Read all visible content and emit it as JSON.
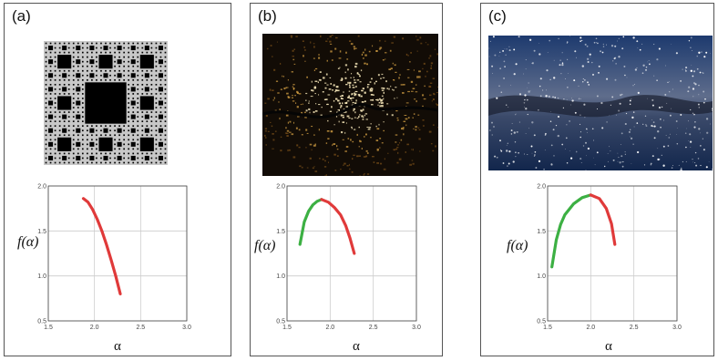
{
  "panels": [
    {
      "label": "(a)",
      "image": "sierpinski-carpet-fractal"
    },
    {
      "label": "(b)",
      "image": "city-lights-night-satellite-photo"
    },
    {
      "label": "(c)",
      "image": "milky-way-starfield-photo"
    }
  ],
  "axis_labels": {
    "x": "α",
    "y": "f(α)"
  },
  "colors": {
    "rising": "#3cb043",
    "falling": "#e03a3a",
    "grid": "#cccccc",
    "axis": "#444444"
  },
  "chart_data": [
    {
      "type": "line",
      "panel": "(a)",
      "xlabel": "α",
      "ylabel": "f(α)",
      "xlim": [
        1.5,
        3.0
      ],
      "ylim": [
        0.5,
        2.0
      ],
      "xticks": [
        "1.5",
        "2.0",
        "2.5",
        "3.0"
      ],
      "yticks": [
        "0.5",
        "1.0",
        "1.5",
        "2.0"
      ],
      "grid": true,
      "series": [
        {
          "color": "#e03a3a",
          "x": [
            1.88,
            1.93,
            1.98,
            2.03,
            2.08,
            2.13,
            2.18,
            2.23,
            2.28
          ],
          "y": [
            1.86,
            1.82,
            1.74,
            1.63,
            1.5,
            1.35,
            1.18,
            1.0,
            0.8
          ]
        }
      ]
    },
    {
      "type": "line",
      "panel": "(b)",
      "xlabel": "α",
      "ylabel": "f(α)",
      "xlim": [
        1.5,
        3.0
      ],
      "ylim": [
        0.5,
        2.0
      ],
      "xticks": [
        "1.5",
        "2.0",
        "2.5",
        "3.0"
      ],
      "yticks": [
        "0.5",
        "1.0",
        "1.5",
        "2.0"
      ],
      "grid": true,
      "series": [
        {
          "color": "#3cb043",
          "x": [
            1.65,
            1.7,
            1.75,
            1.8,
            1.85,
            1.9
          ],
          "y": [
            1.35,
            1.6,
            1.72,
            1.79,
            1.83,
            1.85
          ]
        },
        {
          "color": "#e03a3a",
          "x": [
            1.9,
            1.98,
            2.05,
            2.12,
            2.18,
            2.23,
            2.28
          ],
          "y": [
            1.85,
            1.82,
            1.76,
            1.68,
            1.56,
            1.42,
            1.25
          ]
        }
      ]
    },
    {
      "type": "line",
      "panel": "(c)",
      "xlabel": "α",
      "ylabel": "f(α)",
      "xlim": [
        1.5,
        3.0
      ],
      "ylim": [
        0.5,
        2.0
      ],
      "xticks": [
        "1.5",
        "2.0",
        "2.5",
        "3.0"
      ],
      "yticks": [
        "0.5",
        "1.0",
        "1.5",
        "2.0"
      ],
      "grid": true,
      "series": [
        {
          "color": "#3cb043",
          "x": [
            1.55,
            1.6,
            1.65,
            1.7,
            1.8,
            1.9,
            2.0
          ],
          "y": [
            1.1,
            1.4,
            1.57,
            1.68,
            1.8,
            1.87,
            1.9
          ]
        },
        {
          "color": "#e03a3a",
          "x": [
            2.0,
            2.1,
            2.18,
            2.24,
            2.28
          ],
          "y": [
            1.9,
            1.86,
            1.75,
            1.58,
            1.35
          ]
        }
      ]
    }
  ]
}
